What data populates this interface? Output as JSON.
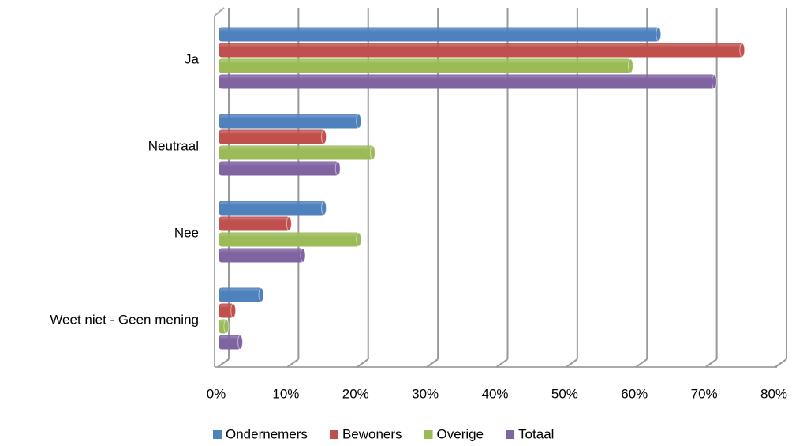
{
  "chart_data": {
    "type": "bar",
    "orientation": "horizontal",
    "categories": [
      "Ja",
      "Neutraal",
      "Nee",
      "Weet niet - Geen mening"
    ],
    "series": [
      {
        "name": "Ondernemers",
        "color": "#4f81bd",
        "values": [
          63,
          20,
          15,
          6
        ]
      },
      {
        "name": "Bewoners",
        "color": "#c0504d",
        "values": [
          75,
          15,
          10,
          2
        ]
      },
      {
        "name": "Overige",
        "color": "#9bbb59",
        "values": [
          59,
          22,
          20,
          1
        ]
      },
      {
        "name": "Totaal",
        "color": "#8064a2",
        "values": [
          71,
          17,
          12,
          3
        ]
      }
    ],
    "xlim": [
      0,
      80
    ],
    "xticks": [
      {
        "value": 0,
        "label": "0%"
      },
      {
        "value": 10,
        "label": "10%"
      },
      {
        "value": 20,
        "label": "20%"
      },
      {
        "value": 30,
        "label": "30%"
      },
      {
        "value": 40,
        "label": "40%"
      },
      {
        "value": 50,
        "label": "50%"
      },
      {
        "value": 60,
        "label": "60%"
      },
      {
        "value": 70,
        "label": "70%"
      },
      {
        "value": 80,
        "label": "80%"
      }
    ],
    "grid": true,
    "legend": "bottom"
  }
}
